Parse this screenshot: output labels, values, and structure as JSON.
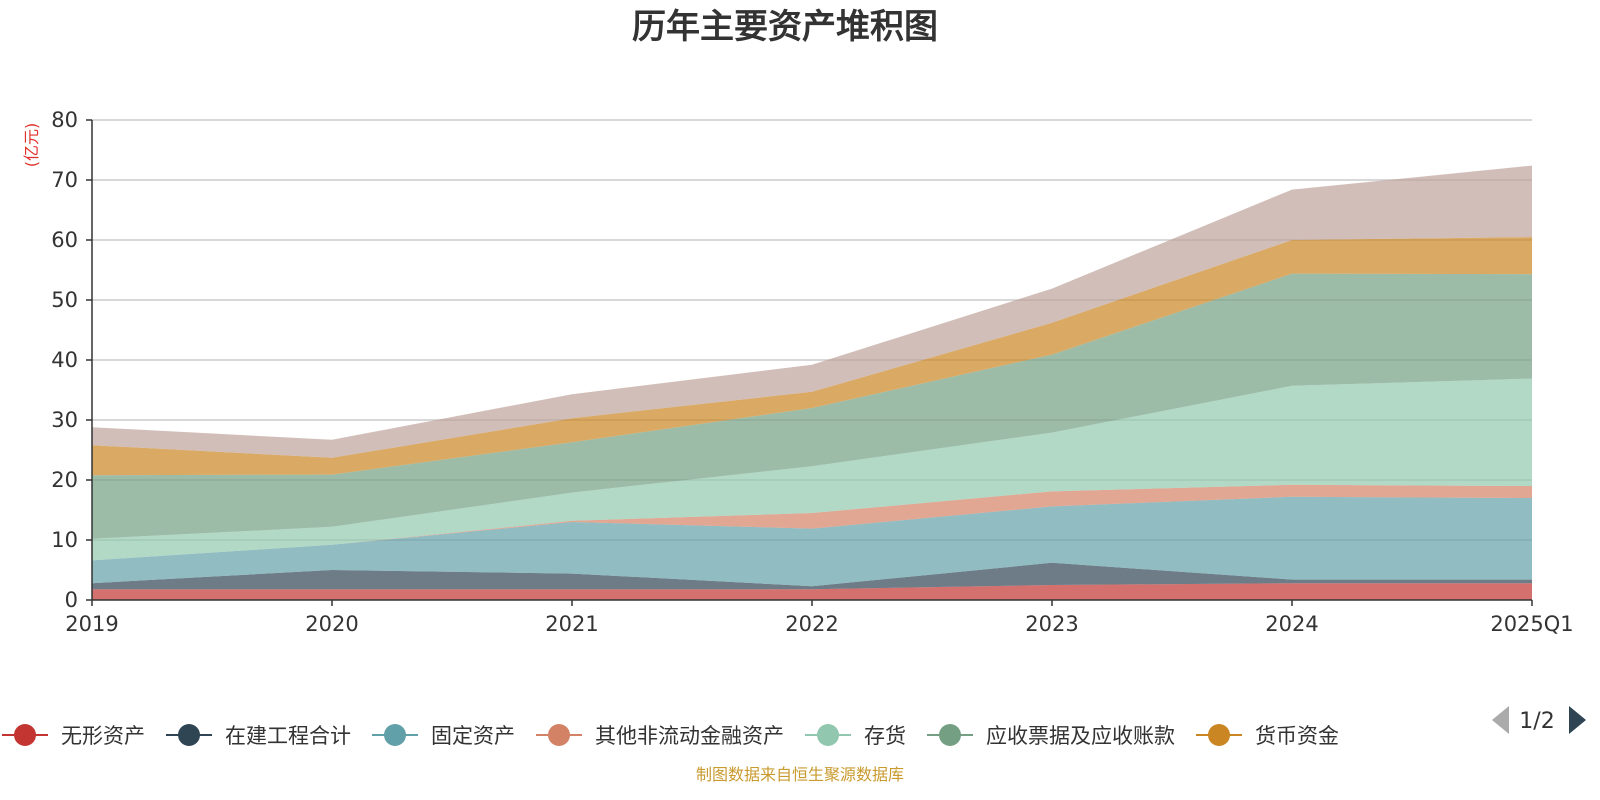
{
  "chart_data": {
    "type": "area",
    "stacked": true,
    "title": "历年主要资产堆积图",
    "unit_label": "(亿元)",
    "ylim": [
      0,
      80
    ],
    "yticks": [
      0,
      10,
      20,
      30,
      40,
      50,
      60,
      70,
      80
    ],
    "categories": [
      "2019",
      "2020",
      "2021",
      "2022",
      "2023",
      "2024",
      "2025Q1"
    ],
    "grid": true,
    "series": [
      {
        "name": "无形资产",
        "color": "#c23531",
        "values": [
          1.8,
          1.8,
          1.8,
          1.8,
          2.5,
          2.8,
          2.8
        ]
      },
      {
        "name": "在建工程合计",
        "color": "#2f4554",
        "values": [
          1.0,
          3.2,
          2.6,
          0.5,
          3.7,
          0.6,
          0.6
        ]
      },
      {
        "name": "固定资产",
        "color": "#61a0a8",
        "values": [
          3.8,
          4.2,
          8.6,
          9.6,
          9.4,
          13.8,
          13.6
        ]
      },
      {
        "name": "其他非流动金融资产",
        "color": "#d48265",
        "values": [
          0.0,
          0.0,
          0.2,
          2.6,
          2.5,
          2.0,
          2.0
        ]
      },
      {
        "name": "存货",
        "color": "#91c7ae",
        "values": [
          3.6,
          3.0,
          4.7,
          7.8,
          9.8,
          16.5,
          17.9
        ]
      },
      {
        "name": "应收票据及应收账款",
        "color": "#749f83",
        "values": [
          10.6,
          8.7,
          8.4,
          9.7,
          13.0,
          18.7,
          17.4
        ]
      },
      {
        "name": "货币资金",
        "color": "#ca8622",
        "values": [
          5.0,
          2.8,
          4.0,
          2.7,
          5.3,
          5.6,
          6.2
        ]
      },
      {
        "name": "",
        "color": "#bda29a",
        "values": [
          3.0,
          3.0,
          4.0,
          4.5,
          5.7,
          8.4,
          11.9
        ]
      }
    ],
    "legend": {
      "placement": "bottom",
      "visible_items": [
        "无形资产",
        "在建工程合计",
        "固定资产",
        "其他非流动金融资产",
        "存货",
        "应收票据及应收账款",
        "货币资金"
      ],
      "page": "1/2"
    },
    "source_text": "制图数据来自恒生聚源数据库"
  }
}
